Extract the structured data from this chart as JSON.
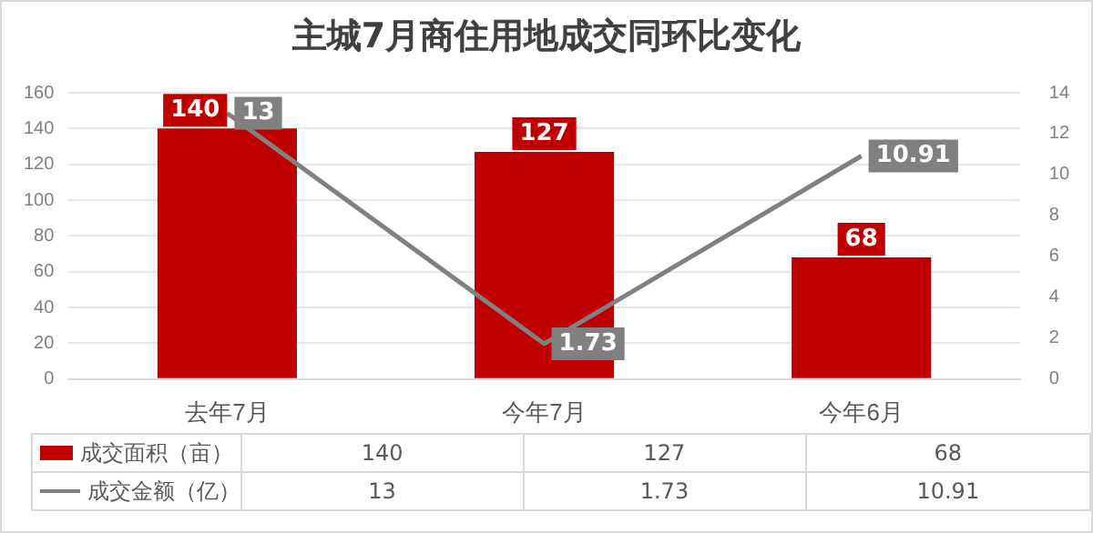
{
  "chart_data": {
    "type": "bar",
    "title": "主城7月商住用地成交同环比变化",
    "categories": [
      "去年7月",
      "今年7月",
      "今年6月"
    ],
    "series": [
      {
        "name": "成交面积（亩）",
        "color": "#c00000",
        "values": [
          140,
          127,
          68
        ]
      },
      {
        "name": "成交金额（亿）",
        "type": "line",
        "axis": "y2",
        "color": "#808080",
        "values": [
          13,
          1.73,
          10.91
        ]
      }
    ],
    "ylim": [
      0,
      160
    ],
    "yticks": [
      0,
      20,
      40,
      60,
      80,
      100,
      120,
      140,
      160
    ],
    "y2lim": [
      0,
      14
    ],
    "y2ticks": [
      0,
      2,
      4,
      6,
      8,
      10,
      12,
      14
    ],
    "annotations": [
      {
        "text": "140",
        "x": "去年7月",
        "y": 140
      },
      {
        "text": "127",
        "x": "今年7月",
        "y": 127
      },
      {
        "text": "68",
        "x": "今年6月",
        "y": 68
      },
      "13",
      "1.73",
      "10.91"
    ],
    "grid": "y",
    "legend": "bottom",
    "data_labels": true,
    "marker": "none"
  }
}
